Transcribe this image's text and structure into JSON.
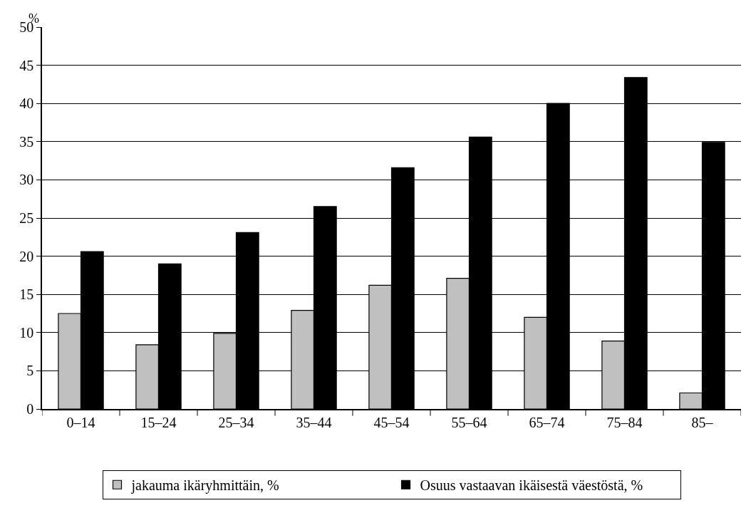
{
  "chart_data": {
    "type": "bar",
    "ylabel": "%",
    "categories": [
      "0–14",
      "15–24",
      "25–34",
      "35–44",
      "45–54",
      "55–64",
      "65–74",
      "75–84",
      "85–"
    ],
    "series": [
      {
        "name": "jakauma ikäryhmittäin, %",
        "color": "#c0c0c0",
        "values": [
          12.5,
          8.4,
          9.9,
          12.9,
          16.2,
          17.1,
          12.0,
          8.9,
          2.1
        ]
      },
      {
        "name": "Osuus vastaavan ikäisestä väestöstä, %",
        "color": "#000000",
        "values": [
          20.6,
          19.0,
          23.1,
          26.5,
          31.6,
          35.6,
          40.0,
          43.4,
          34.9
        ]
      }
    ],
    "ylim": [
      0,
      50
    ],
    "yticks": [
      0,
      5,
      10,
      15,
      20,
      25,
      30,
      35,
      40,
      45,
      50
    ],
    "grid": "y",
    "legend": "bottom"
  }
}
